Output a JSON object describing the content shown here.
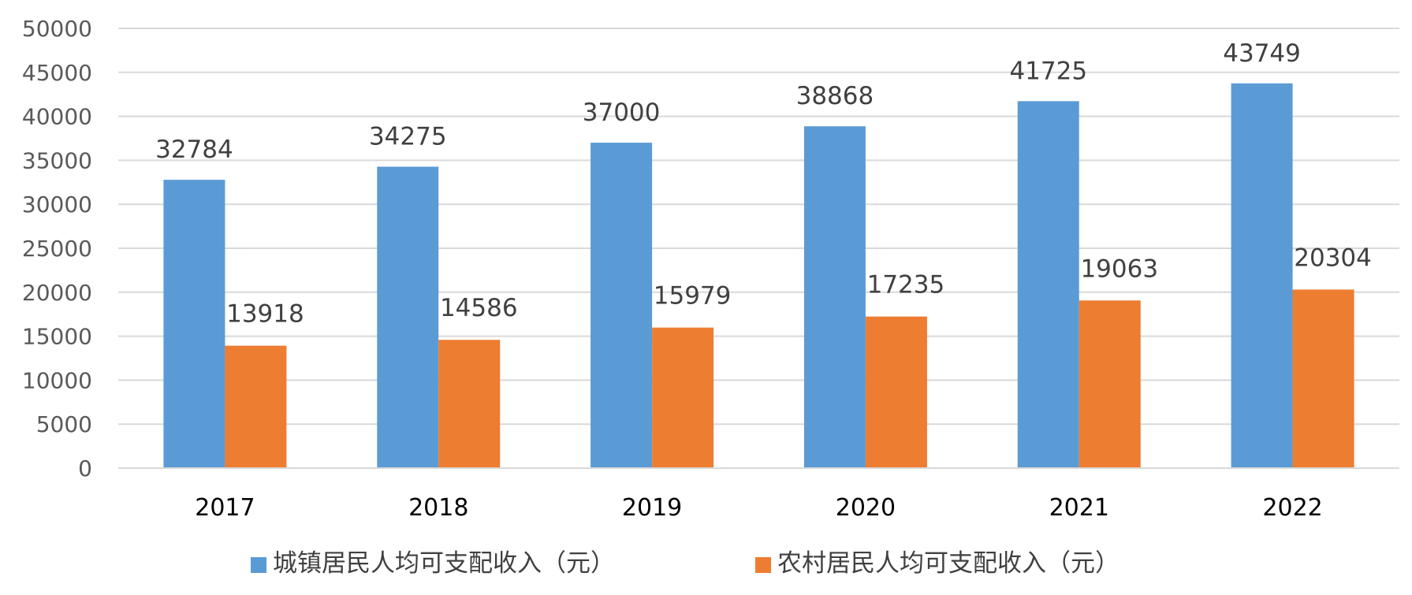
{
  "chart_data": {
    "type": "bar",
    "categories": [
      "2017",
      "2018",
      "2019",
      "2020",
      "2021",
      "2022"
    ],
    "series": [
      {
        "name": "城镇居民人均可支配收入（元）",
        "color": "#5B9BD5",
        "values": [
          32784,
          34275,
          37000,
          38868,
          41725,
          43749
        ],
        "labels": [
          "32784",
          "34275",
          "37000",
          "38868",
          "41725",
          "43749"
        ]
      },
      {
        "name": "农村居民人均可支配收入（元）",
        "color": "#ED7D31",
        "values": [
          13918,
          14586,
          15979,
          17235,
          19063,
          20304
        ],
        "labels": [
          "13918",
          "14586",
          "15979",
          "17235",
          "19063",
          "20304"
        ]
      }
    ],
    "ylim": [
      0,
      50000
    ],
    "yticks": [
      "0",
      "5000",
      "10000",
      "15000",
      "20000",
      "25000",
      "30000",
      "35000",
      "40000",
      "45000",
      "50000"
    ],
    "grid": true,
    "legend": "bottom"
  }
}
